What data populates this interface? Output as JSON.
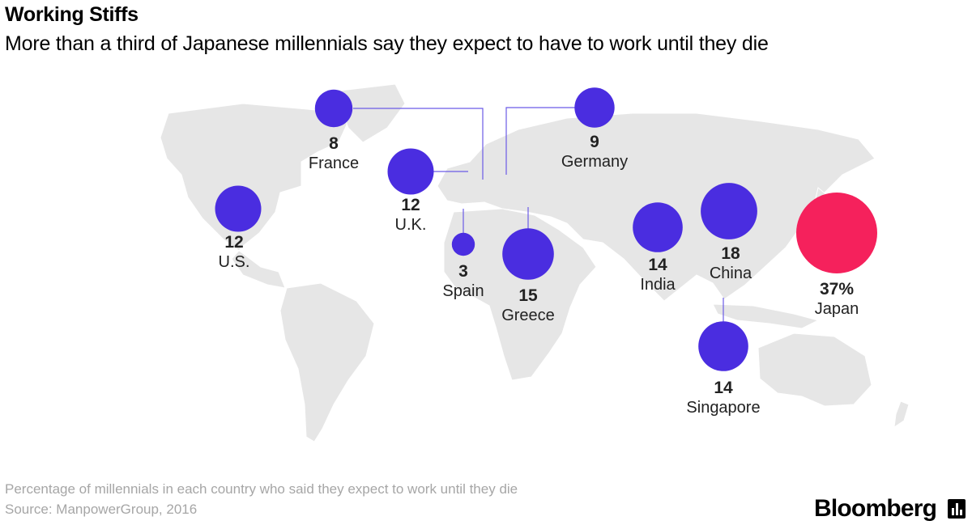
{
  "header": {
    "title": "Working Stiffs",
    "subtitle": "More than a third of Japanese millennials say they expect to have to work until they die"
  },
  "footer": {
    "note": "Percentage of millennials in each country who said they expect to work until they die",
    "source": "Source: ManpowerGroup, 2016",
    "brand": "Bloomberg"
  },
  "colors": {
    "bubble": "#4a2de0",
    "highlight": "#f5215c",
    "land": "#e6e6e6",
    "leader": "#6b5be6"
  },
  "chart_data": {
    "type": "bubble-map",
    "unit": "%",
    "points": [
      {
        "country": "France",
        "value": 8,
        "label": "8"
      },
      {
        "country": "Germany",
        "value": 9,
        "label": "9"
      },
      {
        "country": "U.K.",
        "value": 12,
        "label": "12"
      },
      {
        "country": "U.S.",
        "value": 12,
        "label": "12"
      },
      {
        "country": "Spain",
        "value": 3,
        "label": "3"
      },
      {
        "country": "Greece",
        "value": 15,
        "label": "15"
      },
      {
        "country": "India",
        "value": 14,
        "label": "14"
      },
      {
        "country": "China",
        "value": 18,
        "label": "18"
      },
      {
        "country": "Japan",
        "value": 37,
        "label": "37%",
        "highlight": true
      },
      {
        "country": "Singapore",
        "value": 14,
        "label": "14"
      }
    ]
  }
}
